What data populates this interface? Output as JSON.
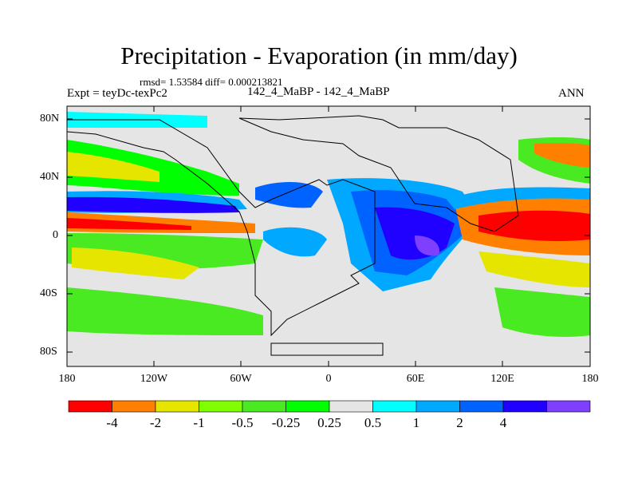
{
  "title": "Precipitation - Evaporation (in mm/day)",
  "stats": "rmsd= 1.53584 diff= 0.000213821",
  "experiment": "Expt = teyDc-texPc2",
  "case": "142_4_MaBP - 142_4_MaBP",
  "season": "ANN",
  "y_ticks": [
    "80N",
    "40N",
    "0",
    "40S",
    "80S"
  ],
  "x_ticks": [
    "180",
    "120W",
    "60W",
    "0",
    "60E",
    "120E",
    "180"
  ],
  "colorbar": {
    "colors": [
      "#ff0000",
      "#ff7f00",
      "#e5e500",
      "#80ff00",
      "#49ea21",
      "#00ff00",
      "#e5e5e5",
      "#00ffff",
      "#00a9ff",
      "#0063ff",
      "#2000ff",
      "#7f3fff"
    ],
    "labels": [
      "-4",
      "-2",
      "-1",
      "-0.5",
      "-0.25",
      "0.25",
      "0.5",
      "1",
      "2",
      "4"
    ]
  }
}
